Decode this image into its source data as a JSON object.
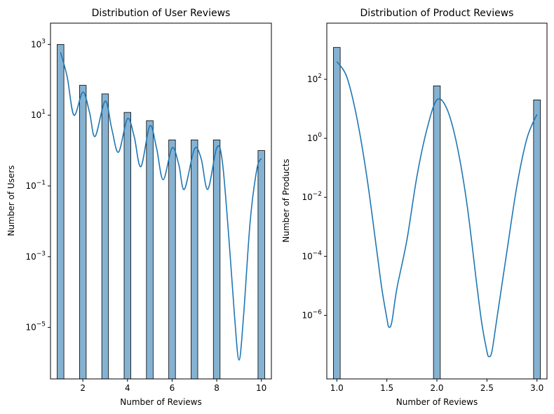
{
  "colors": {
    "bar_fill": "#86b2d2",
    "kde_line": "#1f77b4"
  },
  "chart_data": [
    {
      "type": "bar",
      "title": "Distribution of User Reviews",
      "xlabel": "Number of Reviews",
      "ylabel": "Number of Users",
      "yscale": "log",
      "xlim": [
        0.55,
        10.45
      ],
      "ylim": [
        3.5e-07,
        4000
      ],
      "x_ticks": [
        2,
        4,
        6,
        8,
        10
      ],
      "y_ticks": [
        {
          "base": "10",
          "exp": "3",
          "value": 1000
        },
        {
          "base": "10",
          "exp": "1",
          "value": 10
        },
        {
          "base": "10",
          "exp": "−1",
          "value": 0.1
        },
        {
          "base": "10",
          "exp": "−3",
          "value": 0.001
        },
        {
          "base": "10",
          "exp": "−5",
          "value": 1e-05
        }
      ],
      "bar_width": 0.3,
      "bars": [
        {
          "x": 1,
          "value": 1000
        },
        {
          "x": 2,
          "value": 70
        },
        {
          "x": 3,
          "value": 40
        },
        {
          "x": 4,
          "value": 12
        },
        {
          "x": 5,
          "value": 7
        },
        {
          "x": 6,
          "value": 2
        },
        {
          "x": 7,
          "value": 2
        },
        {
          "x": 8,
          "value": 2
        },
        {
          "x": 10,
          "value": 1
        }
      ],
      "kde": {
        "x": [
          1.0,
          1.3,
          1.6,
          2.0,
          2.3,
          2.55,
          3.0,
          3.3,
          3.6,
          4.0,
          4.3,
          4.6,
          5.0,
          5.3,
          5.6,
          6.0,
          6.3,
          6.55,
          7.0,
          7.3,
          7.6,
          8.0,
          8.25,
          8.55,
          8.8,
          9.0,
          9.2,
          9.5,
          9.8,
          10.0
        ],
        "y": [
          600,
          120,
          10,
          45,
          12,
          2.5,
          25,
          4,
          0.9,
          8,
          2.5,
          0.35,
          5,
          1.2,
          0.15,
          1.2,
          0.4,
          0.08,
          1.1,
          0.6,
          0.08,
          1.2,
          0.5,
          0.003,
          2e-05,
          1.2e-06,
          2e-05,
          0.01,
          0.3,
          0.6
        ]
      },
      "grid": false
    },
    {
      "type": "bar",
      "title": "Distribution of Product Reviews",
      "xlabel": "Number of Reviews",
      "ylabel": "Number of Products",
      "yscale": "log",
      "xlim": [
        0.9,
        3.1
      ],
      "ylim": [
        7e-09,
        8000
      ],
      "x_ticks": [
        1.0,
        1.5,
        2.0,
        2.5,
        3.0
      ],
      "x_tick_labels": [
        "1.0",
        "1.5",
        "2.0",
        "2.5",
        "3.0"
      ],
      "y_ticks": [
        {
          "base": "10",
          "exp": "2",
          "value": 100
        },
        {
          "base": "10",
          "exp": "0",
          "value": 1
        },
        {
          "base": "10",
          "exp": "−2",
          "value": 0.01
        },
        {
          "base": "10",
          "exp": "−4",
          "value": 0.0001
        },
        {
          "base": "10",
          "exp": "−6",
          "value": 1e-06
        }
      ],
      "bar_width": 0.068,
      "bars": [
        {
          "x": 1.0,
          "value": 1200
        },
        {
          "x": 2.0,
          "value": 60
        },
        {
          "x": 3.0,
          "value": 20
        }
      ],
      "kde": {
        "x": [
          1.0,
          1.1,
          1.2,
          1.3,
          1.4,
          1.45,
          1.5,
          1.52,
          1.55,
          1.6,
          1.7,
          1.8,
          1.9,
          2.0,
          2.1,
          2.2,
          2.3,
          2.4,
          2.45,
          2.5,
          2.52,
          2.55,
          2.6,
          2.7,
          2.8,
          2.9,
          3.0
        ],
        "y": [
          400,
          120,
          5,
          0.05,
          0.00015,
          8e-06,
          8e-07,
          4e-07,
          6e-07,
          8e-06,
          0.00035,
          0.05,
          2,
          20,
          10,
          0.6,
          0.006,
          1e-05,
          5e-07,
          6e-08,
          4e-08,
          6e-08,
          8e-07,
          0.00015,
          0.025,
          1.0,
          6.5
        ]
      },
      "grid": false
    }
  ]
}
